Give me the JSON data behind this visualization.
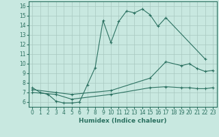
{
  "xlabel": "Humidex (Indice chaleur)",
  "ylabel": "",
  "xlim": [
    -0.5,
    23.5
  ],
  "ylim": [
    5.5,
    16.5
  ],
  "xticks": [
    0,
    1,
    2,
    3,
    4,
    5,
    6,
    7,
    8,
    9,
    10,
    11,
    12,
    13,
    14,
    15,
    16,
    17,
    18,
    19,
    20,
    21,
    22,
    23
  ],
  "yticks": [
    6,
    7,
    8,
    9,
    10,
    11,
    12,
    13,
    14,
    15,
    16
  ],
  "bg_color": "#c8e8e0",
  "grid_color": "#a8c8c0",
  "line_color": "#2a7060",
  "line1_x": [
    0,
    1,
    2,
    3,
    4,
    5,
    6,
    7,
    8,
    9,
    10,
    11,
    12,
    13,
    14,
    15,
    16,
    17,
    22
  ],
  "line1_y": [
    7.5,
    7.0,
    6.8,
    6.1,
    5.9,
    5.9,
    6.0,
    7.8,
    9.6,
    14.5,
    12.2,
    14.4,
    15.5,
    15.3,
    15.7,
    15.1,
    13.9,
    14.8,
    10.5
  ],
  "line2_x": [
    0,
    3,
    5,
    10,
    15,
    17,
    19,
    20,
    21,
    22,
    23
  ],
  "line2_y": [
    7.3,
    7.0,
    6.8,
    7.2,
    8.5,
    10.2,
    9.8,
    10.0,
    9.5,
    9.2,
    9.3
  ],
  "line3_x": [
    0,
    3,
    5,
    10,
    15,
    17,
    19,
    20,
    21,
    22,
    23
  ],
  "line3_y": [
    7.0,
    6.8,
    6.3,
    6.8,
    7.5,
    7.6,
    7.5,
    7.5,
    7.4,
    7.4,
    7.5
  ],
  "marker": "+",
  "tick_fontsize": 5.5,
  "xlabel_fontsize": 6.5
}
